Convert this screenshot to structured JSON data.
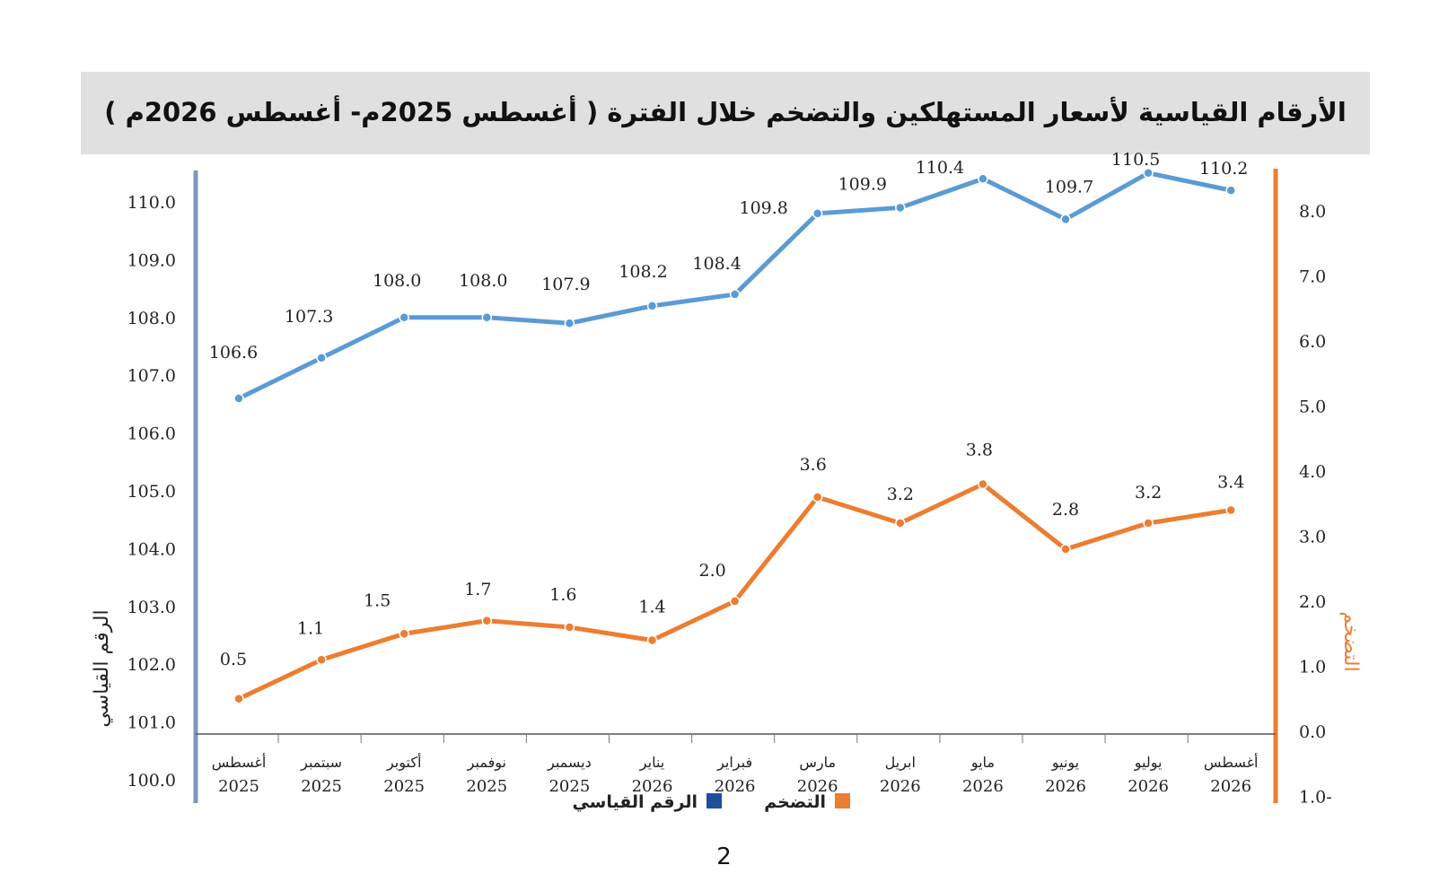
{
  "chart_data": {
    "type": "line",
    "title": "الأرقام القياسية لأسعار المستهلكين والتضخم خلال الفترة ( أغسطس 2025م- أغسطس 2026م )",
    "categories": [
      {
        "month": "أغسطس",
        "year": "2025"
      },
      {
        "month": "سبتمبر",
        "year": "2025"
      },
      {
        "month": "أكتوبر",
        "year": "2025"
      },
      {
        "month": "نوفمبر",
        "year": "2025"
      },
      {
        "month": "ديسمبر",
        "year": "2025"
      },
      {
        "month": "يناير",
        "year": "2026"
      },
      {
        "month": "فبراير",
        "year": "2026"
      },
      {
        "month": "مارس",
        "year": "2026"
      },
      {
        "month": "ابريل",
        "year": "2026"
      },
      {
        "month": "مايو",
        "year": "2026"
      },
      {
        "month": "يونيو",
        "year": "2026"
      },
      {
        "month": "يوليو",
        "year": "2026"
      },
      {
        "month": "أغسطس",
        "year": "2026"
      }
    ],
    "series": [
      {
        "name": "الرقم القياسي",
        "axis": "left",
        "color": "#5b9bd5",
        "values": [
          106.6,
          107.3,
          108.0,
          108.0,
          107.9,
          108.2,
          108.4,
          109.8,
          109.9,
          110.4,
          109.7,
          110.5,
          110.2
        ],
        "labels": [
          "106.6",
          "107.3",
          "108.0",
          "108.0",
          "107.9",
          "108.2",
          "108.4",
          "109.8",
          "109.9",
          "110.4",
          "109.7",
          "110.5",
          "110.2"
        ]
      },
      {
        "name": "التضخم",
        "axis": "right",
        "color": "#ed7d31",
        "values": [
          0.5,
          1.1,
          1.5,
          1.7,
          1.6,
          1.4,
          2.0,
          3.6,
          3.2,
          3.8,
          2.8,
          3.2,
          3.4
        ],
        "labels": [
          "0.5",
          "1.1",
          "1.5",
          "1.7",
          "1.6",
          "1.4",
          "2.0",
          "3.6",
          "3.2",
          "3.8",
          "2.8",
          "3.2",
          "3.4"
        ]
      }
    ],
    "ylabel_left": "الرقم القياسي",
    "ylabel_right": "التضخم",
    "y_left_ticks": [
      "100.0",
      "101.0",
      "102.0",
      "103.0",
      "104.0",
      "105.0",
      "106.0",
      "107.0",
      "108.0",
      "109.0",
      "110.0"
    ],
    "y_right_ticks": [
      "1.0-",
      "0.0",
      "1.0",
      "2.0",
      "3.0",
      "4.0",
      "5.0",
      "6.0",
      "7.0",
      "8.0"
    ],
    "ylim_left": [
      100,
      110
    ],
    "ylim_right": [
      -1,
      8
    ],
    "legend": [
      {
        "label": "الرقم القياسي",
        "color": "#1f4e9e"
      },
      {
        "label": "التضخم",
        "color": "#ed7d31"
      }
    ],
    "legend_position": "bottom",
    "grid": false
  },
  "colors": {
    "left_axis": "#8096b9",
    "right_axis": "#ed7d31",
    "index_line": "#5b9bd5",
    "inflation_line": "#ed7d31",
    "title_background": "#e0e0e0"
  },
  "page_number": "2"
}
